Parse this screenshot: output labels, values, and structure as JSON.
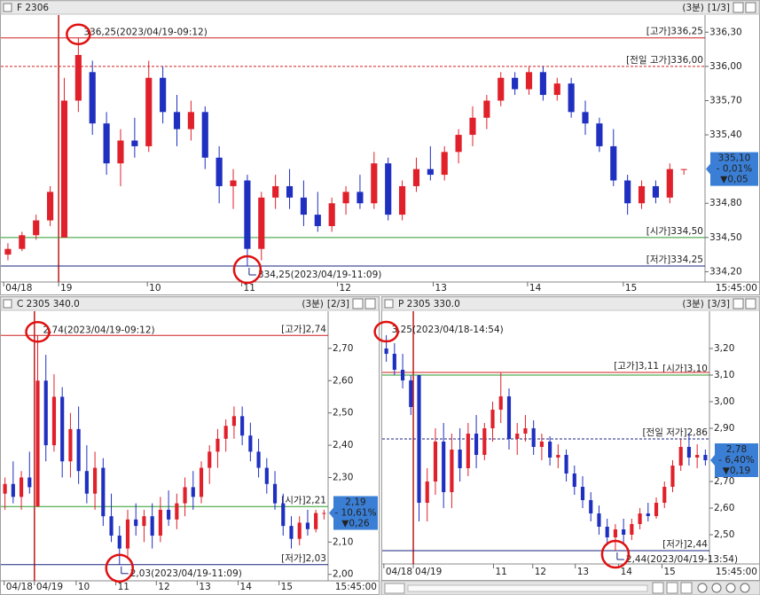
{
  "chart_data": [
    {
      "type": "candlestick",
      "title": "F 2306",
      "interval": "(3분)",
      "page": "[1/3]",
      "up_color": "#e0202a",
      "down_color": "#1f2fc0",
      "xlim": [
        0,
        50
      ],
      "ylim": [
        334.11,
        336.45
      ],
      "xticks": [
        {
          "value": 0.2,
          "label": "04/18"
        },
        {
          "value": 4.1,
          "label": "19"
        },
        {
          "value": 10.4,
          "label": "10"
        },
        {
          "value": 17.1,
          "label": "11"
        },
        {
          "value": 23.9,
          "label": "12"
        },
        {
          "value": 30.7,
          "label": "13"
        },
        {
          "value": 37.4,
          "label": "14"
        },
        {
          "value": 44.2,
          "label": "15"
        }
      ],
      "x_end_label": "15:45:00",
      "yticks": [
        {
          "value": 336.3,
          "label": "336,30"
        },
        {
          "value": 336.0,
          "label": "336,00"
        },
        {
          "value": 335.7,
          "label": "335,70"
        },
        {
          "value": 335.4,
          "label": "335,40"
        },
        {
          "value": 334.8,
          "label": "334,80"
        },
        {
          "value": 334.5,
          "label": "334,50"
        },
        {
          "value": 334.2,
          "label": "334,20"
        }
      ],
      "lines": [
        {
          "value": 336.25,
          "label": "[고가]336,25",
          "color": "#d02020",
          "dashed": false
        },
        {
          "value": 336.0,
          "label": "[전일 고가]336,00",
          "color": "#d02020",
          "dashed": true
        },
        {
          "value": 334.5,
          "label": "[시가]334,50",
          "color": "#2a9a2a",
          "dashed": false
        },
        {
          "value": 334.25,
          "label": "[저가]334,25",
          "color": "#1a237e",
          "dashed": false
        }
      ],
      "extremes": [
        {
          "value": 336.25,
          "label": "336,25(2023/04/19-09:12)"
        },
        {
          "value": 334.25,
          "label": "334,25(2023/04/19-11:09)"
        }
      ],
      "last": {
        "value": 335.1,
        "label": "335,10"
      },
      "change_pct": "- 0,01%",
      "change": "▼0,05",
      "ohlc": [
        [
          334.35,
          334.45,
          334.3,
          334.4
        ],
        [
          334.4,
          334.55,
          334.38,
          334.52
        ],
        [
          334.52,
          334.7,
          334.48,
          334.65
        ],
        [
          334.65,
          334.95,
          334.6,
          334.9
        ],
        [
          334.5,
          335.9,
          334.5,
          335.7
        ],
        [
          335.7,
          336.25,
          335.6,
          336.1
        ],
        [
          335.95,
          336.05,
          335.4,
          335.5
        ],
        [
          335.5,
          335.6,
          335.05,
          335.15
        ],
        [
          335.15,
          335.45,
          334.95,
          335.35
        ],
        [
          335.35,
          335.55,
          335.2,
          335.3
        ],
        [
          335.3,
          336.05,
          335.25,
          335.9
        ],
        [
          335.9,
          336.0,
          335.5,
          335.6
        ],
        [
          335.6,
          335.75,
          335.3,
          335.45
        ],
        [
          335.45,
          335.7,
          335.35,
          335.6
        ],
        [
          335.6,
          335.65,
          335.1,
          335.2
        ],
        [
          335.2,
          335.3,
          334.8,
          334.95
        ],
        [
          334.95,
          335.1,
          334.75,
          335.0
        ],
        [
          335.0,
          335.05,
          334.25,
          334.4
        ],
        [
          334.4,
          334.9,
          334.3,
          334.85
        ],
        [
          334.85,
          335.05,
          334.75,
          334.95
        ],
        [
          334.95,
          335.1,
          334.75,
          334.85
        ],
        [
          334.85,
          335.0,
          334.6,
          334.7
        ],
        [
          334.7,
          334.9,
          334.55,
          334.6
        ],
        [
          334.6,
          334.85,
          334.55,
          334.8
        ],
        [
          334.8,
          334.95,
          334.7,
          334.9
        ],
        [
          334.9,
          335.05,
          334.75,
          334.8
        ],
        [
          334.8,
          335.25,
          334.75,
          335.15
        ],
        [
          335.15,
          335.2,
          334.65,
          334.7
        ],
        [
          334.7,
          335.0,
          334.65,
          334.95
        ],
        [
          334.95,
          335.2,
          334.9,
          335.1
        ],
        [
          335.1,
          335.3,
          335.0,
          335.05
        ],
        [
          335.05,
          335.3,
          335.0,
          335.25
        ],
        [
          335.25,
          335.45,
          335.15,
          335.4
        ],
        [
          335.4,
          335.65,
          335.3,
          335.55
        ],
        [
          335.55,
          335.75,
          335.45,
          335.7
        ],
        [
          335.7,
          335.95,
          335.65,
          335.9
        ],
        [
          335.9,
          335.95,
          335.75,
          335.8
        ],
        [
          335.8,
          336.0,
          335.75,
          335.95
        ],
        [
          335.95,
          336.0,
          335.7,
          335.75
        ],
        [
          335.75,
          335.9,
          335.7,
          335.85
        ],
        [
          335.85,
          335.9,
          335.55,
          335.6
        ],
        [
          335.6,
          335.7,
          335.4,
          335.5
        ],
        [
          335.5,
          335.55,
          335.25,
          335.3
        ],
        [
          335.3,
          335.45,
          334.95,
          335.0
        ],
        [
          335.0,
          335.05,
          334.7,
          334.8
        ],
        [
          334.8,
          335.0,
          334.75,
          334.95
        ],
        [
          334.95,
          335.0,
          334.8,
          334.85
        ],
        [
          334.85,
          335.15,
          334.8,
          335.1
        ],
        [
          335.1,
          335.1,
          335.05,
          335.1
        ]
      ]
    },
    {
      "type": "candlestick",
      "title": "C 2305 340.0",
      "interval": "(3분)",
      "page": "[2/3]",
      "up_color": "#e0202a",
      "down_color": "#1f2fc0",
      "xlim": [
        0,
        40
      ],
      "ylim": [
        1.98,
        2.815
      ],
      "xticks": [
        {
          "value": 0.4,
          "label": "04/18"
        },
        {
          "value": 4.1,
          "label": "04/19"
        },
        {
          "value": 9.2,
          "label": "10"
        },
        {
          "value": 14.05,
          "label": "11"
        },
        {
          "value": 19,
          "label": "12"
        },
        {
          "value": 24,
          "label": "13"
        },
        {
          "value": 29,
          "label": "14"
        },
        {
          "value": 34,
          "label": "15"
        }
      ],
      "x_end_label": "15:45:00",
      "yticks": [
        {
          "value": 2.7,
          "label": "2,70"
        },
        {
          "value": 2.6,
          "label": "2,60"
        },
        {
          "value": 2.5,
          "label": "2,50"
        },
        {
          "value": 2.4,
          "label": "2,40"
        },
        {
          "value": 2.3,
          "label": "2,30"
        },
        {
          "value": 2.1,
          "label": "2,10"
        },
        {
          "value": 2.0,
          "label": "2,00"
        }
      ],
      "lines": [
        {
          "value": 2.74,
          "label": "[고가]2,74",
          "color": "#d02020",
          "dashed": false
        },
        {
          "value": 2.21,
          "label": "[시가]2,21",
          "color": "#2a9a2a",
          "dashed": false
        },
        {
          "value": 2.03,
          "label": "[저가]2,03",
          "color": "#1a237e",
          "dashed": false
        }
      ],
      "extremes": [
        {
          "value": 2.74,
          "label": "2,74(2023/04/19-09:12)"
        },
        {
          "value": 2.03,
          "label": "2,03(2023/04/19-11:09)"
        }
      ],
      "last": {
        "value": 2.19,
        "label": "2,19"
      },
      "change_pct": "- 10,61%",
      "change": "▼0,26",
      "ohlc": [
        [
          2.25,
          2.3,
          2.2,
          2.28
        ],
        [
          2.28,
          2.35,
          2.22,
          2.24
        ],
        [
          2.24,
          2.32,
          2.2,
          2.3
        ],
        [
          2.3,
          2.38,
          2.25,
          2.27
        ],
        [
          2.21,
          2.74,
          2.21,
          2.6
        ],
        [
          2.6,
          2.68,
          2.35,
          2.4
        ],
        [
          2.4,
          2.62,
          2.38,
          2.55
        ],
        [
          2.55,
          2.58,
          2.3,
          2.35
        ],
        [
          2.35,
          2.5,
          2.3,
          2.45
        ],
        [
          2.45,
          2.52,
          2.28,
          2.32
        ],
        [
          2.32,
          2.4,
          2.22,
          2.25
        ],
        [
          2.25,
          2.38,
          2.2,
          2.33
        ],
        [
          2.33,
          2.36,
          2.15,
          2.18
        ],
        [
          2.18,
          2.25,
          2.1,
          2.12
        ],
        [
          2.12,
          2.15,
          2.03,
          2.08
        ],
        [
          2.08,
          2.2,
          2.05,
          2.17
        ],
        [
          2.17,
          2.22,
          2.12,
          2.15
        ],
        [
          2.15,
          2.2,
          2.1,
          2.18
        ],
        [
          2.18,
          2.22,
          2.08,
          2.12
        ],
        [
          2.12,
          2.24,
          2.1,
          2.2
        ],
        [
          2.2,
          2.26,
          2.15,
          2.17
        ],
        [
          2.17,
          2.25,
          2.14,
          2.22
        ],
        [
          2.22,
          2.3,
          2.18,
          2.27
        ],
        [
          2.27,
          2.32,
          2.2,
          2.24
        ],
        [
          2.24,
          2.35,
          2.22,
          2.33
        ],
        [
          2.33,
          2.4,
          2.28,
          2.38
        ],
        [
          2.38,
          2.45,
          2.33,
          2.42
        ],
        [
          2.42,
          2.48,
          2.38,
          2.46
        ],
        [
          2.46,
          2.52,
          2.42,
          2.49
        ],
        [
          2.49,
          2.52,
          2.4,
          2.43
        ],
        [
          2.43,
          2.47,
          2.35,
          2.38
        ],
        [
          2.38,
          2.42,
          2.3,
          2.33
        ],
        [
          2.33,
          2.36,
          2.25,
          2.28
        ],
        [
          2.28,
          2.32,
          2.2,
          2.22
        ],
        [
          2.22,
          2.25,
          2.12,
          2.15
        ],
        [
          2.15,
          2.18,
          2.08,
          2.11
        ],
        [
          2.11,
          2.18,
          2.09,
          2.16
        ],
        [
          2.16,
          2.2,
          2.12,
          2.14
        ],
        [
          2.14,
          2.2,
          2.13,
          2.19
        ],
        [
          2.19,
          2.2,
          2.17,
          2.19
        ]
      ]
    },
    {
      "type": "candlestick",
      "title": "P 2305 330.0",
      "interval": "(3분)",
      "page": "[3/3]",
      "up_color": "#e0202a",
      "down_color": "#1f2fc0",
      "xlim": [
        0,
        40
      ],
      "ylim": [
        2.39,
        3.34
      ],
      "xticks": [
        {
          "value": 0.2,
          "label": "04/18"
        },
        {
          "value": 3.8,
          "label": "04/19"
        },
        {
          "value": 13.6,
          "label": "11"
        },
        {
          "value": 18.4,
          "label": "12"
        },
        {
          "value": 23.6,
          "label": "13"
        },
        {
          "value": 28.9,
          "label": "14"
        },
        {
          "value": 34.2,
          "label": "15"
        }
      ],
      "x_end_label": "15:45:00",
      "yticks": [
        {
          "value": 3.2,
          "label": "3,20"
        },
        {
          "value": 3.1,
          "label": "3,10"
        },
        {
          "value": 3.0,
          "label": "3,00"
        },
        {
          "value": 2.9,
          "label": "2,90"
        },
        {
          "value": 2.7,
          "label": "2,70"
        },
        {
          "value": 2.6,
          "label": "2,60"
        },
        {
          "value": 2.5,
          "label": "2,50"
        }
      ],
      "lines": [
        {
          "value": 3.1,
          "label": "[시가]3,10",
          "color": "#2a9a2a",
          "dashed": false
        },
        {
          "value": 3.11,
          "label": "[고가]3,11",
          "color": "#d02020",
          "dashed": false
        },
        {
          "value": 2.86,
          "label": "[전일 저가]2,86",
          "color": "#1a237e",
          "dashed": true
        },
        {
          "value": 2.44,
          "label": "[저가]2,44",
          "color": "#1a237e",
          "dashed": false
        }
      ],
      "extremes": [
        {
          "value": 3.25,
          "label": "3,25(2023/04/18-14:54)"
        },
        {
          "value": 2.44,
          "label": "2,44(2023/04/19-13:54)"
        }
      ],
      "last": {
        "value": 2.78,
        "label": "2,78"
      },
      "change_pct": "- 6,40%",
      "change": "▼0,19",
      "ohlc": [
        [
          3.2,
          3.25,
          3.15,
          3.18
        ],
        [
          3.18,
          3.22,
          3.1,
          3.12
        ],
        [
          3.12,
          3.18,
          3.05,
          3.08
        ],
        [
          3.08,
          3.1,
          2.95,
          2.98
        ],
        [
          3.1,
          3.1,
          2.55,
          2.62
        ],
        [
          2.62,
          2.75,
          2.55,
          2.7
        ],
        [
          2.7,
          2.9,
          2.65,
          2.85
        ],
        [
          2.85,
          2.92,
          2.6,
          2.66
        ],
        [
          2.66,
          2.88,
          2.6,
          2.82
        ],
        [
          2.82,
          2.9,
          2.7,
          2.75
        ],
        [
          2.75,
          2.92,
          2.72,
          2.88
        ],
        [
          2.88,
          2.95,
          2.75,
          2.8
        ],
        [
          2.8,
          2.92,
          2.78,
          2.9
        ],
        [
          2.9,
          3.0,
          2.85,
          2.97
        ],
        [
          2.97,
          3.11,
          2.92,
          3.02
        ],
        [
          3.02,
          3.05,
          2.82,
          2.86
        ],
        [
          2.86,
          2.92,
          2.8,
          2.88
        ],
        [
          2.88,
          2.95,
          2.85,
          2.9
        ],
        [
          2.9,
          2.93,
          2.8,
          2.83
        ],
        [
          2.83,
          2.88,
          2.78,
          2.85
        ],
        [
          2.85,
          2.87,
          2.76,
          2.79
        ],
        [
          2.79,
          2.84,
          2.75,
          2.8
        ],
        [
          2.8,
          2.82,
          2.7,
          2.73
        ],
        [
          2.73,
          2.76,
          2.65,
          2.68
        ],
        [
          2.68,
          2.72,
          2.6,
          2.63
        ],
        [
          2.63,
          2.66,
          2.55,
          2.58
        ],
        [
          2.58,
          2.61,
          2.5,
          2.53
        ],
        [
          2.53,
          2.56,
          2.46,
          2.49
        ],
        [
          2.49,
          2.54,
          2.44,
          2.52
        ],
        [
          2.52,
          2.56,
          2.47,
          2.5
        ],
        [
          2.5,
          2.56,
          2.48,
          2.54
        ],
        [
          2.54,
          2.6,
          2.52,
          2.58
        ],
        [
          2.58,
          2.62,
          2.55,
          2.57
        ],
        [
          2.57,
          2.64,
          2.56,
          2.62
        ],
        [
          2.62,
          2.7,
          2.6,
          2.68
        ],
        [
          2.68,
          2.78,
          2.66,
          2.76
        ],
        [
          2.76,
          2.86,
          2.74,
          2.83
        ],
        [
          2.83,
          2.88,
          2.76,
          2.79
        ],
        [
          2.79,
          2.84,
          2.75,
          2.8
        ],
        [
          2.8,
          2.82,
          2.76,
          2.78
        ]
      ]
    }
  ]
}
